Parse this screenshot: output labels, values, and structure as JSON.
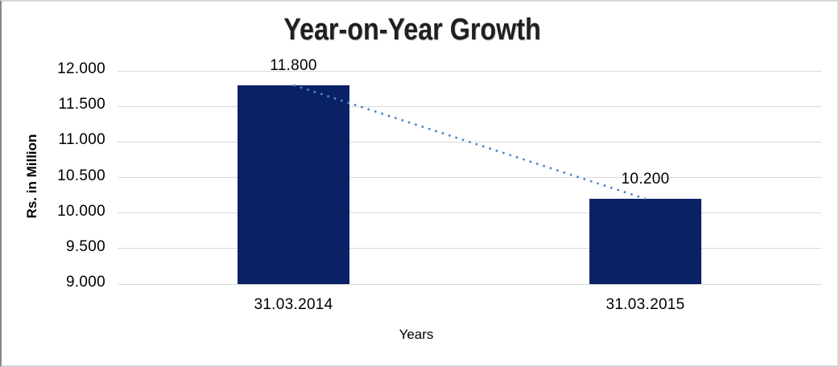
{
  "chart_data": {
    "type": "bar",
    "title": "Year-on-Year Growth",
    "xlabel": "Years",
    "ylabel": "Rs. in Million",
    "categories": [
      "31.03.2014",
      "31.03.2015"
    ],
    "values": [
      11.8,
      10.2
    ],
    "data_labels": [
      "11.800",
      "10.200"
    ],
    "ylim": [
      9.0,
      12.0
    ],
    "ytick_step": 0.5,
    "ytick_labels": [
      "9.000",
      "9.500",
      "10.000",
      "10.500",
      "11.000",
      "11.500",
      "12.000"
    ],
    "grid": true,
    "legend": false,
    "trendline": {
      "style": "dotted",
      "from_value": 11.8,
      "to_value": 10.2
    },
    "colors": {
      "bar": "#0a2166",
      "gridline": "#d9d9d9",
      "trendline": "#4e86c8",
      "title_text": "#1f1f1f",
      "label_text": "#000000"
    }
  }
}
